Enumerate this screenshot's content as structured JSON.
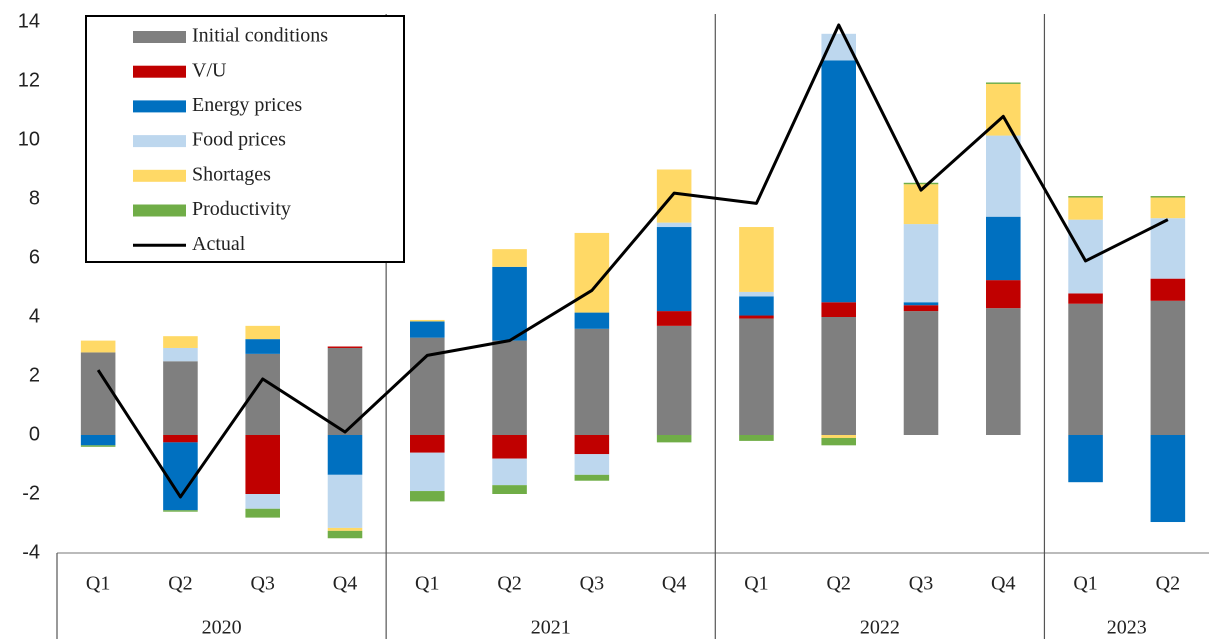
{
  "chart_data": {
    "type": "bar",
    "stacked": true,
    "groups": [
      {
        "name": "2020",
        "categories": [
          "Q1",
          "Q2",
          "Q3",
          "Q4"
        ]
      },
      {
        "name": "2021",
        "categories": [
          "Q1",
          "Q2",
          "Q3",
          "Q4"
        ]
      },
      {
        "name": "2022",
        "categories": [
          "Q1",
          "Q2",
          "Q3",
          "Q4"
        ]
      },
      {
        "name": "2023",
        "categories": [
          "Q1",
          "Q2"
        ]
      }
    ],
    "ylim": [
      -4,
      14
    ],
    "yticks": [
      -4,
      -2,
      0,
      2,
      4,
      6,
      8,
      10,
      12,
      14
    ],
    "legend": "upper left",
    "series": [
      {
        "name": "Initial conditions",
        "color": "#7f7f7f",
        "values": [
          2.8,
          2.5,
          2.75,
          2.95,
          3.3,
          3.2,
          3.6,
          3.7,
          3.95,
          4.0,
          4.2,
          4.3,
          4.45,
          4.55
        ]
      },
      {
        "name": "V/U",
        "color": "#c00000",
        "values": [
          0,
          -0.25,
          -2.0,
          0.05,
          -0.6,
          -0.8,
          -0.65,
          0.5,
          0.1,
          0.5,
          0.2,
          0.95,
          0.35,
          0.75
        ]
      },
      {
        "name": "Energy prices",
        "color": "#0070c0",
        "values": [
          -0.35,
          -2.3,
          0.5,
          -1.35,
          0.55,
          2.5,
          0.55,
          2.85,
          0.65,
          8.2,
          0.1,
          2.15,
          -1.6,
          -2.95
        ]
      },
      {
        "name": "Food prices",
        "color": "#bdd7ee",
        "values": [
          0,
          0.45,
          -0.5,
          -1.8,
          -1.3,
          -0.9,
          -0.7,
          0.15,
          0.15,
          0.9,
          2.65,
          2.75,
          2.5,
          2.05
        ]
      },
      {
        "name": "Shortages",
        "color": "#ffd966",
        "values": [
          0.4,
          0.4,
          0.45,
          -0.1,
          0.05,
          0.6,
          2.7,
          1.8,
          2.2,
          -0.1,
          1.35,
          1.75,
          0.75,
          0.7
        ]
      },
      {
        "name": "Productivity",
        "color": "#70ad47",
        "values": [
          -0.05,
          -0.05,
          -0.3,
          -0.25,
          -0.35,
          -0.3,
          -0.2,
          -0.25,
          -0.2,
          -0.25,
          0.05,
          0.05,
          0.05,
          0.05
        ]
      },
      {
        "name": "Actual",
        "color": "#000000",
        "type": "line",
        "values": [
          2.2,
          -2.1,
          1.9,
          0.1,
          2.7,
          3.2,
          4.9,
          8.2,
          7.85,
          13.9,
          8.3,
          10.8,
          5.9,
          7.3
        ]
      }
    ]
  }
}
